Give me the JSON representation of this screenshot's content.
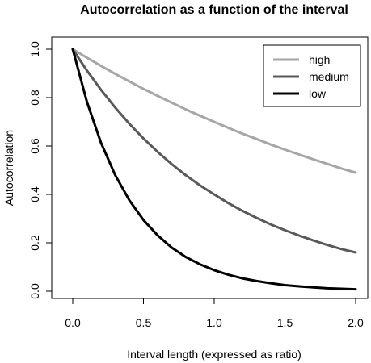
{
  "chart_data": {
    "type": "line",
    "title": "Autocorrelation as a function of the interval",
    "xlabel": "Interval length (expressed as ratio)",
    "ylabel": "Autocorrelation",
    "xlim": [
      0.0,
      2.0
    ],
    "ylim": [
      0.0,
      1.0
    ],
    "xticks": [
      "0.0",
      "0.5",
      "1.0",
      "1.5",
      "2.0"
    ],
    "yticks": [
      "0.0",
      "0.2",
      "0.4",
      "0.6",
      "0.8",
      "1.0"
    ],
    "legend_position": "top-right",
    "grid": false,
    "x": [
      0.0,
      0.1,
      0.2,
      0.3,
      0.4,
      0.5,
      0.6,
      0.7,
      0.8,
      0.9,
      1.0,
      1.1,
      1.2,
      1.3,
      1.4,
      1.5,
      1.6,
      1.7,
      1.8,
      1.9,
      2.0
    ],
    "series": [
      {
        "name": "high",
        "color": "#a6a6a6",
        "values": [
          1.0,
          0.965,
          0.931,
          0.898,
          0.867,
          0.836,
          0.807,
          0.779,
          0.751,
          0.725,
          0.7,
          0.675,
          0.651,
          0.629,
          0.606,
          0.585,
          0.565,
          0.545,
          0.526,
          0.507,
          0.49
        ]
      },
      {
        "name": "medium",
        "color": "#595959",
        "values": [
          1.0,
          0.912,
          0.832,
          0.759,
          0.692,
          0.631,
          0.576,
          0.525,
          0.479,
          0.437,
          0.4,
          0.364,
          0.332,
          0.303,
          0.276,
          0.252,
          0.23,
          0.21,
          0.191,
          0.174,
          0.16
        ]
      },
      {
        "name": "low",
        "color": "#000000",
        "values": [
          1.0,
          0.783,
          0.613,
          0.48,
          0.376,
          0.294,
          0.231,
          0.18,
          0.141,
          0.111,
          0.087,
          0.068,
          0.053,
          0.042,
          0.033,
          0.025,
          0.02,
          0.016,
          0.012,
          0.01,
          0.008
        ]
      }
    ]
  }
}
